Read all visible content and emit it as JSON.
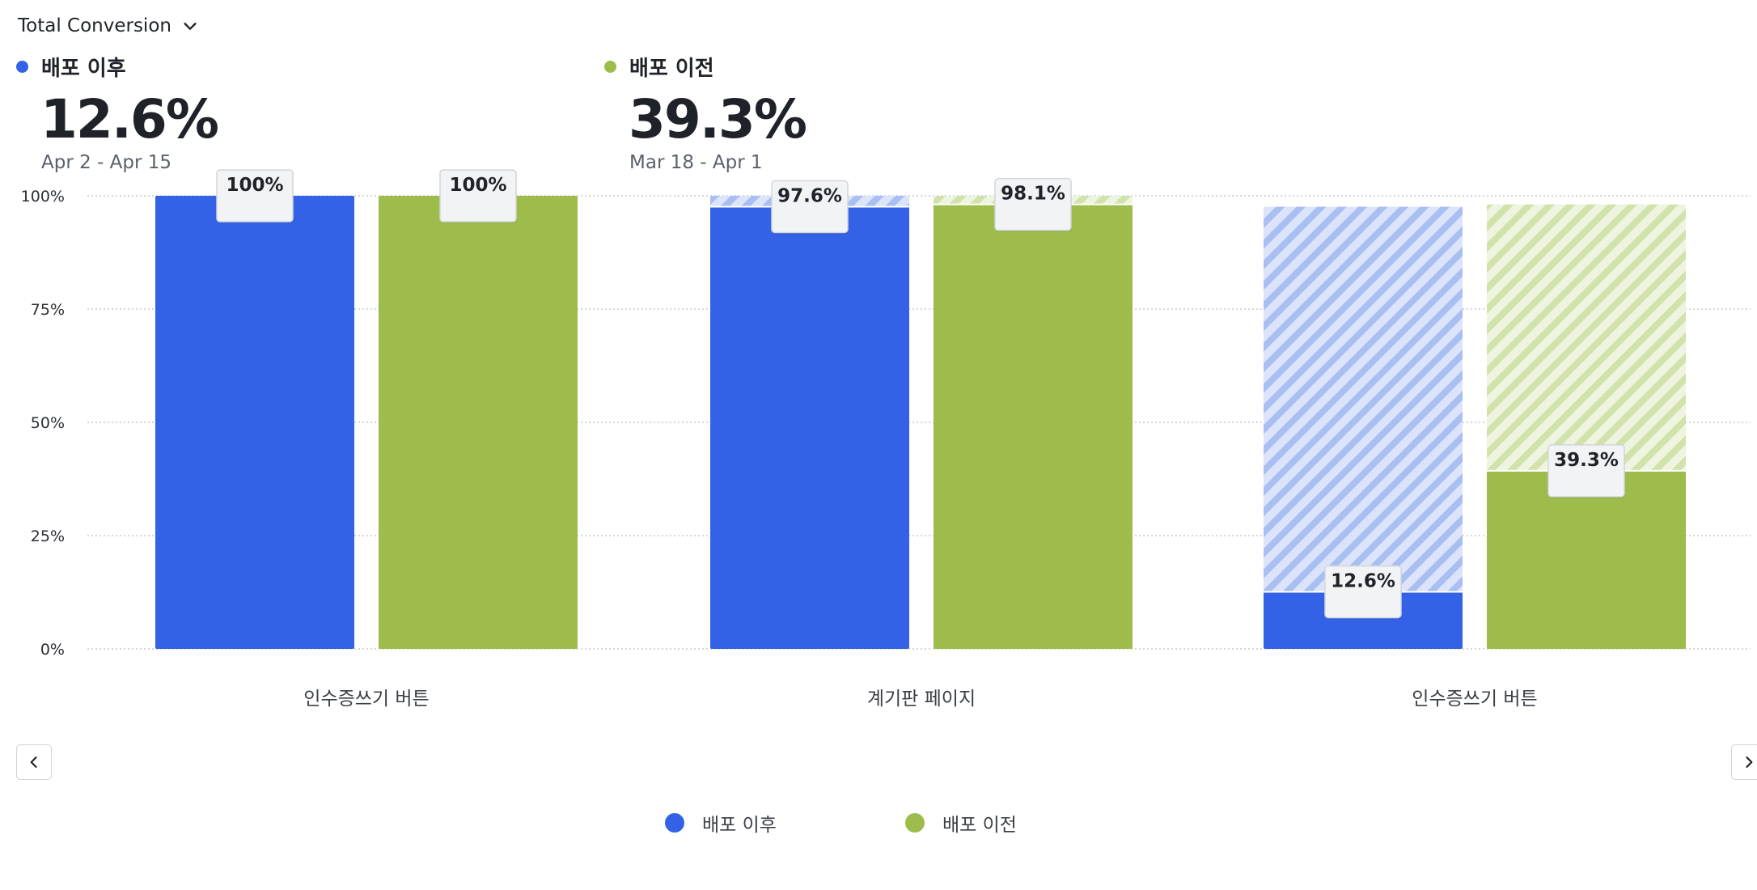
{
  "header": {
    "metric_label": "Total Conversion"
  },
  "summary": [
    {
      "label": "배포 이후",
      "value": "12.6%",
      "range": "Apr 2 - Apr 15",
      "color": "#3362e6"
    },
    {
      "label": "배포 이전",
      "value": "39.3%",
      "range": "Mar 18 - Apr 1",
      "color": "#9dbc4b"
    }
  ],
  "chart_data": {
    "type": "bar",
    "categories": [
      "인수증쓰기 버튼",
      "계기판 페이지",
      "인수증쓰기 버튼"
    ],
    "series": [
      {
        "name": "배포 이후",
        "color": "#3362e6",
        "hatch_color": "#c4d3f5",
        "values": [
          100,
          97.6,
          12.6
        ],
        "prior_step": [
          null,
          100,
          97.6
        ],
        "labels": [
          "100%",
          "97.6%",
          "12.6%"
        ]
      },
      {
        "name": "배포 이전",
        "color": "#9dbc4b",
        "hatch_color": "#dfe9c6",
        "values": [
          100,
          98.1,
          39.3
        ],
        "prior_step": [
          null,
          100,
          98.1
        ],
        "labels": [
          "100%",
          "98.1%",
          "39.3%"
        ]
      }
    ],
    "yticks": [
      "0%",
      "25%",
      "50%",
      "75%",
      "100%"
    ],
    "ylim": [
      0,
      100
    ],
    "grid": true,
    "legend_position": "bottom"
  },
  "legend": [
    {
      "label": "배포 이후",
      "color": "#3362e6"
    },
    {
      "label": "배포 이전",
      "color": "#9dbc4b"
    }
  ]
}
